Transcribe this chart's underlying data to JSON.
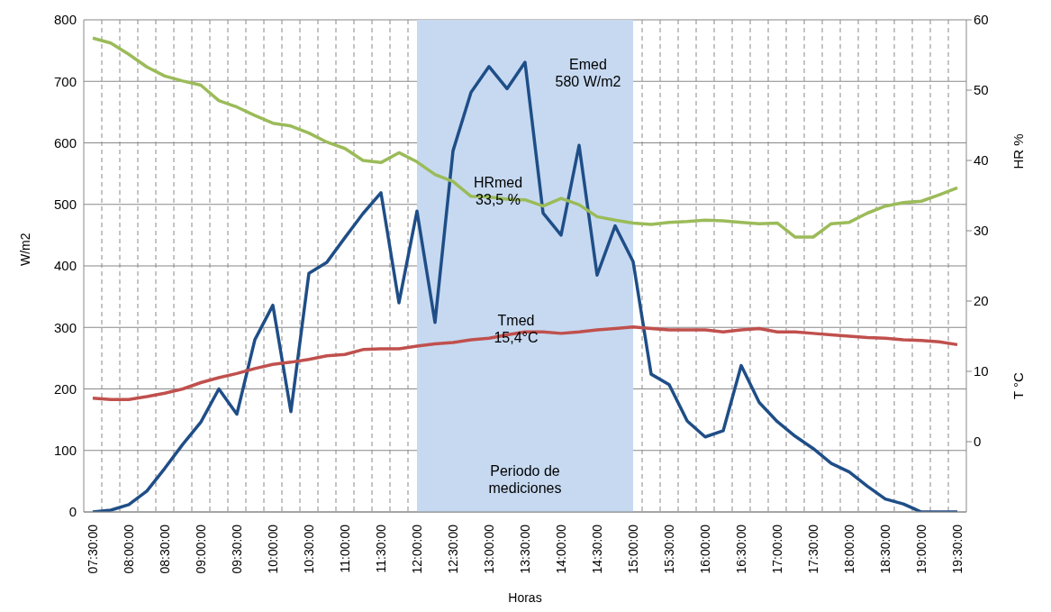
{
  "chart_data": {
    "type": "line",
    "xlabel": "Horas",
    "ylabel": "W/m2",
    "y2label": "HR %",
    "categories": [
      "07:30:00",
      null,
      "08:00:00",
      null,
      "08:30:00",
      null,
      "09:00:00",
      null,
      "09:30:00",
      null,
      "10:00:00",
      null,
      "10:30:00",
      null,
      "11:00:00",
      null,
      "11:30:00",
      null,
      "12:00:00",
      null,
      "12:30:00",
      null,
      "13:00:00",
      null,
      "13:30:00",
      null,
      "14:00:00",
      null,
      "14:30:00",
      null,
      "15:00:00",
      null,
      "15:30:00",
      null,
      "16:00:00",
      null,
      "16:30:00",
      null,
      "17:00:00",
      null,
      "17:30:00",
      null,
      "18:00:00",
      null,
      "18:30:00",
      null,
      "19:00:00",
      null,
      "19:30:00"
    ],
    "series": [
      {
        "color": "#1f4e87",
        "values": [
          0,
          3,
          12,
          34,
          71,
          110,
          146,
          200,
          159,
          280,
          336,
          163,
          388,
          406,
          446,
          485,
          519,
          340,
          489,
          308,
          587,
          682,
          724,
          688,
          731,
          486,
          450,
          596,
          385,
          465,
          407,
          224,
          207,
          148,
          122,
          132,
          238,
          178,
          147,
          123,
          103,
          79,
          65,
          42,
          21,
          13,
          0,
          0,
          0
        ]
      },
      {
        "color": "#9bbb59",
        "axis": "y2",
        "values": [
          57.4,
          56.7,
          55.1,
          53.3,
          52.0,
          51.3,
          50.7,
          48.5,
          47.6,
          46.4,
          45.3,
          44.9,
          43.9,
          42.6,
          41.7,
          40.0,
          39.7,
          41.1,
          39.8,
          38.0,
          37.0,
          34.9,
          34.8,
          34.5,
          34.4,
          33.5,
          34.6,
          33.7,
          32.0,
          31.5,
          31.1,
          30.9,
          31.2,
          31.3,
          31.5,
          31.4,
          31.2,
          31.0,
          31.1,
          29.1,
          29.1,
          31.0,
          31.2,
          32.5,
          33.5,
          34.0,
          34.2,
          35.1,
          36.1
        ]
      },
      {
        "color": "#c0504d",
        "axis": "y2",
        "values": [
          6.2,
          6.0,
          6.0,
          6.4,
          6.9,
          7.5,
          8.4,
          9.1,
          9.7,
          10.4,
          11.0,
          11.3,
          11.7,
          12.2,
          12.4,
          13.1,
          13.2,
          13.2,
          13.6,
          13.9,
          14.1,
          14.5,
          14.7,
          15.2,
          15.6,
          15.6,
          15.4,
          15.6,
          15.9,
          16.1,
          16.3,
          16.1,
          15.9,
          15.9,
          15.9,
          15.6,
          15.9,
          16.1,
          15.6,
          15.6,
          15.4,
          15.2,
          15.0,
          14.8,
          14.7,
          14.5,
          14.4,
          14.2,
          13.8
        ]
      }
    ],
    "ylim": [
      0,
      800
    ],
    "yticks": [
      0,
      100,
      200,
      300,
      400,
      500,
      600,
      700,
      800
    ],
    "y2lim": [
      -10,
      60
    ],
    "y2ticks": [
      0,
      10,
      20,
      30,
      40,
      50,
      60
    ],
    "bands": [
      {
        "axis": "x",
        "from": "12:00:00",
        "to": "15:00:00",
        "label": "Periodo de\nmediciones",
        "color": "#c6d9f1"
      }
    ],
    "annotations": [
      "Emed\n580 W/m2",
      "HRmed\n33,5 %",
      "Tmed\n15,4°C",
      "T °C"
    ],
    "grid": true,
    "marker": "none",
    "line_style": "solid"
  }
}
